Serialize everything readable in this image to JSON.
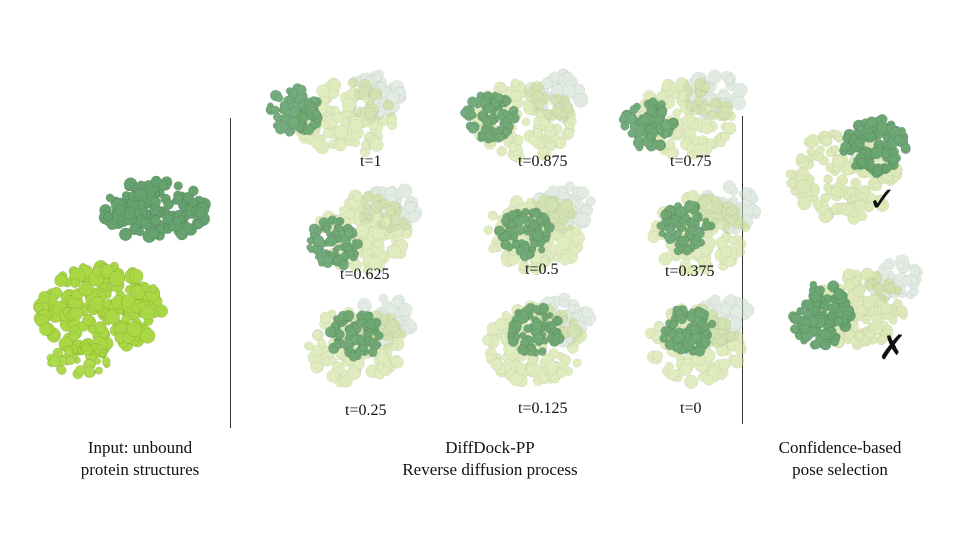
{
  "colors": {
    "receptor_bound": "#c8dc8a",
    "receptor_input": "#a6d63a",
    "ligand": "#5e9e68",
    "ghost": "#c9dccc"
  },
  "sections": {
    "input_caption": [
      "Input: unbound",
      "protein structures"
    ],
    "process_caption": [
      "DiffDock-PP",
      "Reverse diffusion process"
    ],
    "selection_caption": [
      "Confidence-based",
      "pose selection"
    ]
  },
  "timesteps": [
    "t=1",
    "t=0.875",
    "t=0.75",
    "t=0.625",
    "t=0.5",
    "t=0.375",
    "t=0.25",
    "t=0.125",
    "t=0"
  ],
  "selection": {
    "accept_mark": "✓",
    "reject_mark": "✗"
  }
}
